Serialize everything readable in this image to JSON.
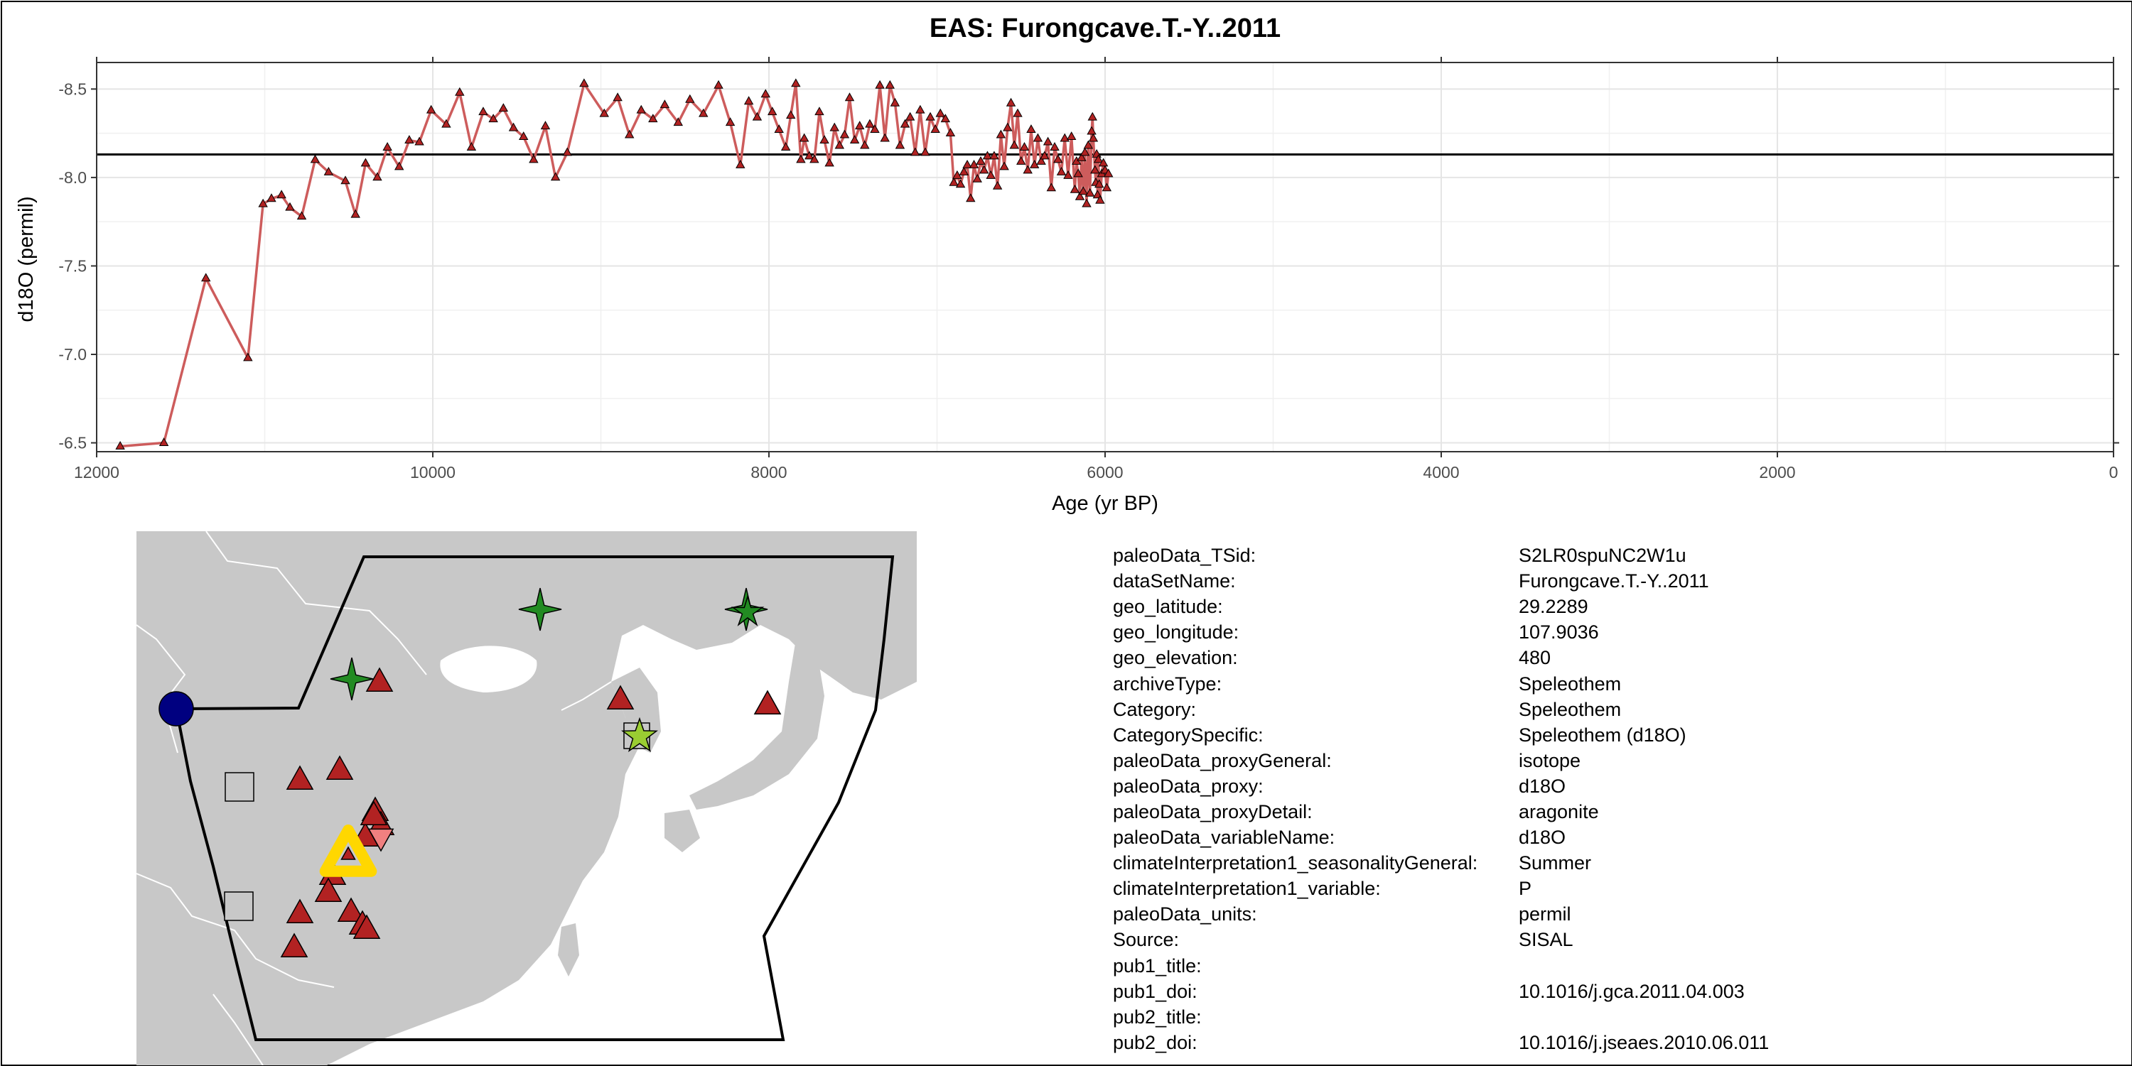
{
  "chart_data": {
    "type": "line",
    "title": "EAS: Furongcave.T.-Y..2011",
    "xlabel": "Age (yr BP)",
    "ylabel": "d18O (permil)",
    "xlim": [
      12000,
      0
    ],
    "ylim": [
      -6.45,
      -8.65
    ],
    "y_reversed": true,
    "x_ticks": [
      12000,
      10000,
      8000,
      6000,
      4000,
      2000,
      0
    ],
    "x_tick_labels": [
      "12000",
      "10000",
      "8000",
      "6000",
      "4000",
      "2000",
      "0"
    ],
    "y_ticks": [
      -6.5,
      -7.0,
      -7.5,
      -8.0,
      -8.5
    ],
    "y_tick_labels": [
      "-6.5",
      "-7.0",
      "-7.5",
      "-8.0",
      "-8.5"
    ],
    "reference_line_y": -8.13,
    "grid": true,
    "line_color": "#cd5c5c",
    "marker_color": "#b22222",
    "series": [
      {
        "marker": "triangle",
        "points": [
          [
            11860,
            -6.48
          ],
          [
            11600,
            -6.5
          ],
          [
            11350,
            -7.43
          ],
          [
            11100,
            -6.98
          ],
          [
            11010,
            -7.85
          ],
          [
            10960,
            -7.88
          ],
          [
            10900,
            -7.9
          ],
          [
            10850,
            -7.83
          ],
          [
            10780,
            -7.78
          ],
          [
            10700,
            -8.1
          ],
          [
            10620,
            -8.03
          ],
          [
            10520,
            -7.98
          ],
          [
            10460,
            -7.79
          ],
          [
            10400,
            -8.08
          ],
          [
            10330,
            -8.0
          ],
          [
            10270,
            -8.17
          ],
          [
            10200,
            -8.06
          ],
          [
            10140,
            -8.21
          ],
          [
            10080,
            -8.2
          ],
          [
            10010,
            -8.38
          ],
          [
            9920,
            -8.3
          ],
          [
            9840,
            -8.48
          ],
          [
            9770,
            -8.17
          ],
          [
            9700,
            -8.37
          ],
          [
            9640,
            -8.33
          ],
          [
            9580,
            -8.39
          ],
          [
            9520,
            -8.28
          ],
          [
            9460,
            -8.23
          ],
          [
            9400,
            -8.1
          ],
          [
            9330,
            -8.29
          ],
          [
            9270,
            -8.0
          ],
          [
            9200,
            -8.14
          ],
          [
            9100,
            -8.53
          ],
          [
            8980,
            -8.36
          ],
          [
            8900,
            -8.45
          ],
          [
            8830,
            -8.24
          ],
          [
            8760,
            -8.38
          ],
          [
            8690,
            -8.33
          ],
          [
            8620,
            -8.41
          ],
          [
            8540,
            -8.31
          ],
          [
            8470,
            -8.44
          ],
          [
            8390,
            -8.36
          ],
          [
            8300,
            -8.52
          ],
          [
            8230,
            -8.31
          ],
          [
            8170,
            -8.07
          ],
          [
            8120,
            -8.43
          ],
          [
            8070,
            -8.34
          ],
          [
            8020,
            -8.47
          ],
          [
            7980,
            -8.37
          ],
          [
            7940,
            -8.27
          ],
          [
            7900,
            -8.17
          ],
          [
            7870,
            -8.35
          ],
          [
            7840,
            -8.53
          ],
          [
            7810,
            -8.1
          ],
          [
            7790,
            -8.22
          ],
          [
            7760,
            -8.12
          ],
          [
            7730,
            -8.1
          ],
          [
            7700,
            -8.37
          ],
          [
            7670,
            -8.21
          ],
          [
            7640,
            -8.08
          ],
          [
            7610,
            -8.28
          ],
          [
            7580,
            -8.18
          ],
          [
            7550,
            -8.24
          ],
          [
            7520,
            -8.45
          ],
          [
            7490,
            -8.21
          ],
          [
            7460,
            -8.29
          ],
          [
            7430,
            -8.18
          ],
          [
            7400,
            -8.3
          ],
          [
            7370,
            -8.27
          ],
          [
            7340,
            -8.52
          ],
          [
            7310,
            -8.22
          ],
          [
            7280,
            -8.52
          ],
          [
            7250,
            -8.42
          ],
          [
            7220,
            -8.18
          ],
          [
            7190,
            -8.3
          ],
          [
            7160,
            -8.34
          ],
          [
            7130,
            -8.14
          ],
          [
            7100,
            -8.38
          ],
          [
            7070,
            -8.14
          ],
          [
            7040,
            -8.34
          ],
          [
            7010,
            -8.27
          ],
          [
            6980,
            -8.36
          ],
          [
            6950,
            -8.33
          ],
          [
            6920,
            -8.25
          ],
          [
            6900,
            -7.97
          ],
          [
            6880,
            -8.01
          ],
          [
            6860,
            -7.96
          ],
          [
            6840,
            -8.03
          ],
          [
            6820,
            -8.07
          ],
          [
            6800,
            -7.88
          ],
          [
            6780,
            -8.07
          ],
          [
            6760,
            -7.99
          ],
          [
            6740,
            -8.09
          ],
          [
            6720,
            -8.04
          ],
          [
            6700,
            -8.12
          ],
          [
            6680,
            -8.01
          ],
          [
            6660,
            -8.12
          ],
          [
            6640,
            -7.95
          ],
          [
            6620,
            -8.24
          ],
          [
            6600,
            -8.06
          ],
          [
            6580,
            -8.28
          ],
          [
            6560,
            -8.42
          ],
          [
            6540,
            -8.18
          ],
          [
            6520,
            -8.36
          ],
          [
            6500,
            -8.09
          ],
          [
            6480,
            -8.17
          ],
          [
            6460,
            -8.04
          ],
          [
            6440,
            -8.27
          ],
          [
            6420,
            -8.07
          ],
          [
            6400,
            -8.22
          ],
          [
            6380,
            -8.09
          ],
          [
            6360,
            -8.12
          ],
          [
            6340,
            -8.2
          ],
          [
            6320,
            -7.94
          ],
          [
            6300,
            -8.17
          ],
          [
            6280,
            -8.1
          ],
          [
            6260,
            -8.03
          ],
          [
            6240,
            -8.22
          ],
          [
            6220,
            -8.01
          ],
          [
            6200,
            -8.23
          ],
          [
            6180,
            -7.93
          ],
          [
            6170,
            -8.09
          ],
          [
            6160,
            -8.02
          ],
          [
            6150,
            -7.89
          ],
          [
            6140,
            -8.11
          ],
          [
            6130,
            -7.92
          ],
          [
            6120,
            -8.14
          ],
          [
            6110,
            -7.85
          ],
          [
            6100,
            -8.18
          ],
          [
            6090,
            -7.91
          ],
          [
            6080,
            -8.26
          ],
          [
            6075,
            -8.34
          ],
          [
            6070,
            -8.22
          ],
          [
            6060,
            -8.04
          ],
          [
            6055,
            -7.97
          ],
          [
            6050,
            -8.13
          ],
          [
            6045,
            -7.9
          ],
          [
            6040,
            -8.1
          ],
          [
            6035,
            -7.96
          ],
          [
            6030,
            -7.87
          ],
          [
            6020,
            -8.02
          ],
          [
            6010,
            -8.08
          ],
          [
            6000,
            -8.04
          ],
          [
            5990,
            -7.94
          ],
          [
            5980,
            -8.02
          ]
        ]
      }
    ]
  },
  "metadata": {
    "rows": [
      {
        "key": "paleoData_TSid:",
        "value": "S2LR0spuNC2W1u"
      },
      {
        "key": "dataSetName:",
        "value": "Furongcave.T.-Y..2011"
      },
      {
        "key": "geo_latitude:",
        "value": "29.2289"
      },
      {
        "key": "geo_longitude:",
        "value": "107.9036"
      },
      {
        "key": "geo_elevation:",
        "value": "480"
      },
      {
        "key": "archiveType:",
        "value": "Speleothem"
      },
      {
        "key": "Category:",
        "value": "Speleothem"
      },
      {
        "key": "CategorySpecific:",
        "value": "Speleothem (d18O)"
      },
      {
        "key": "paleoData_proxyGeneral:",
        "value": "isotope"
      },
      {
        "key": "paleoData_proxy:",
        "value": "d18O"
      },
      {
        "key": "paleoData_proxyDetail:",
        "value": "aragonite"
      },
      {
        "key": "paleoData_variableName:",
        "value": "d18O"
      },
      {
        "key": "climateInterpretation1_seasonalityGeneral:",
        "value": "Summer"
      },
      {
        "key": "climateInterpretation1_variable:",
        "value": "P"
      },
      {
        "key": "paleoData_units:",
        "value": "permil"
      },
      {
        "key": "Source:",
        "value": "SISAL"
      },
      {
        "key": "pub1_title:",
        "value": ""
      },
      {
        "key": "pub1_doi:",
        "value": "10.1016/j.gca.2011.04.003"
      },
      {
        "key": "pub2_title:",
        "value": ""
      },
      {
        "key": "pub2_doi:",
        "value": "10.1016/j.jseaes.2010.06.011"
      }
    ]
  },
  "map": {
    "land_color": "#c8c8c8",
    "border_color": "#ffffff",
    "region_outline_color": "#000000",
    "site_marker": {
      "shape": "triangle",
      "color": "#ffd700"
    },
    "markers": [
      {
        "shape": "circle",
        "color": "#000080"
      },
      {
        "shape": "square",
        "color": "#c8c8c8"
      },
      {
        "shape": "square",
        "color": "#c8c8c8"
      },
      {
        "shape": "square",
        "color": "#c8c8c8"
      },
      {
        "shape": "star4",
        "color": "#228b22"
      },
      {
        "shape": "star4",
        "color": "#228b22"
      },
      {
        "shape": "star4",
        "color": "#228b22"
      },
      {
        "shape": "star5",
        "color": "#9acd32"
      },
      {
        "shape": "triangle-down",
        "color": "#f08080"
      },
      {
        "shape": "triangle",
        "color": "#b22222"
      }
    ]
  }
}
